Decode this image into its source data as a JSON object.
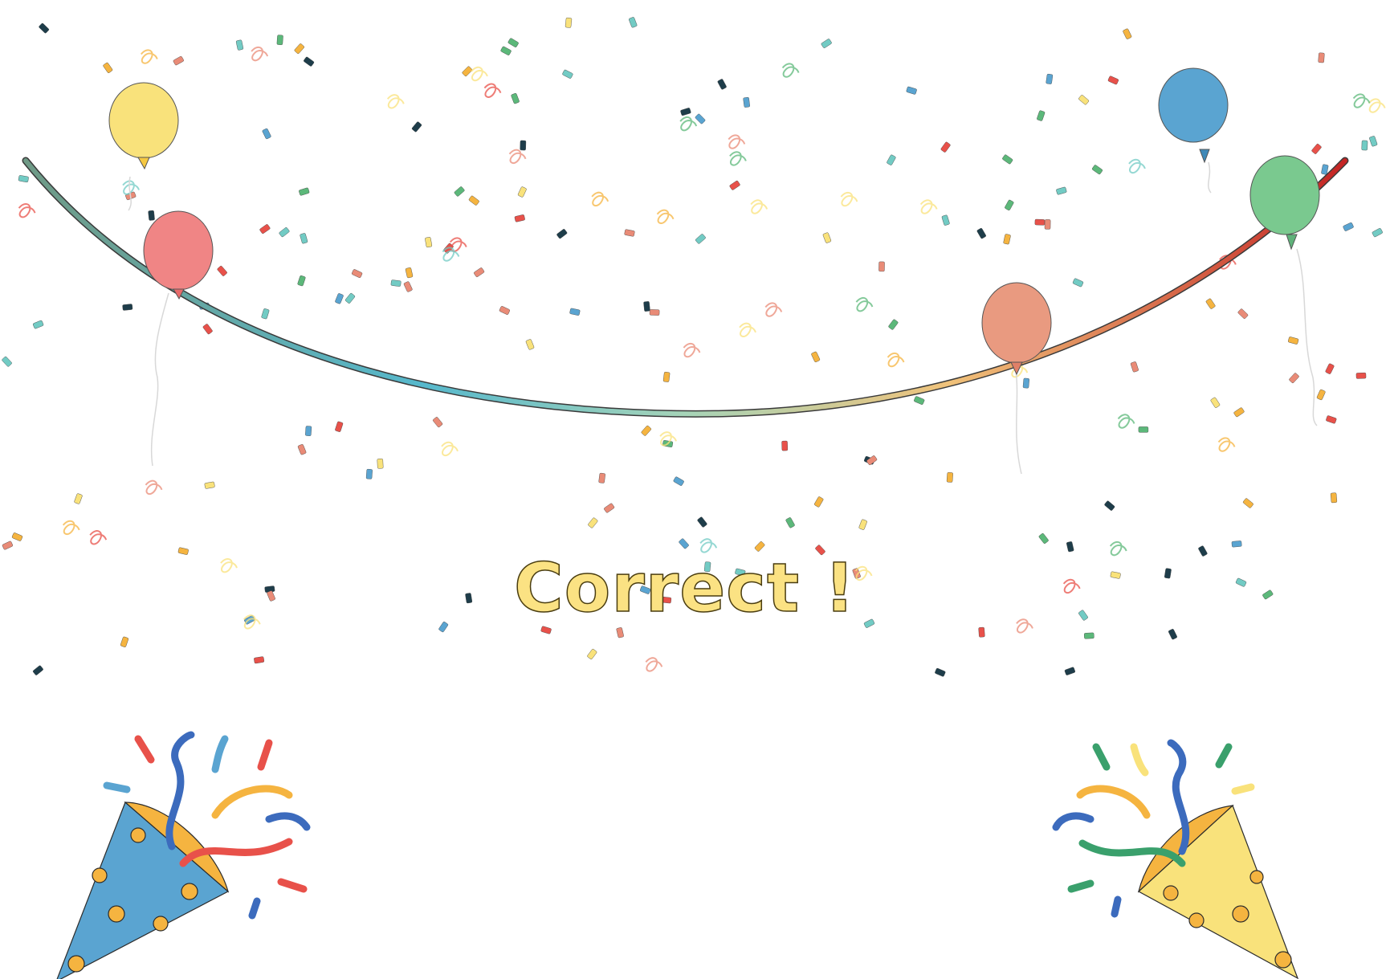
{
  "message": {
    "text": "Correct !",
    "color": "#fbe283"
  },
  "palette": {
    "red": "#e8514a",
    "coral": "#e98b77",
    "yellow": "#f9e27b",
    "orange": "#f5b440",
    "green": "#5cb87a",
    "teal": "#72cbc4",
    "blue": "#5aa4d1",
    "navy": "#1e3d4a"
  },
  "balloons": [
    {
      "name": "balloon-yellow",
      "color": "#f9e27b"
    },
    {
      "name": "balloon-red",
      "color": "#f08585"
    },
    {
      "name": "balloon-coral",
      "color": "#e99a80"
    },
    {
      "name": "balloon-blue",
      "color": "#5aa4d1"
    },
    {
      "name": "balloon-green",
      "color": "#7ac98f"
    }
  ],
  "poppers": [
    {
      "name": "party-popper-left-icon",
      "cone_color": "#5aa4d1"
    },
    {
      "name": "party-popper-right-icon",
      "cone_color": "#f9e27b"
    }
  ]
}
